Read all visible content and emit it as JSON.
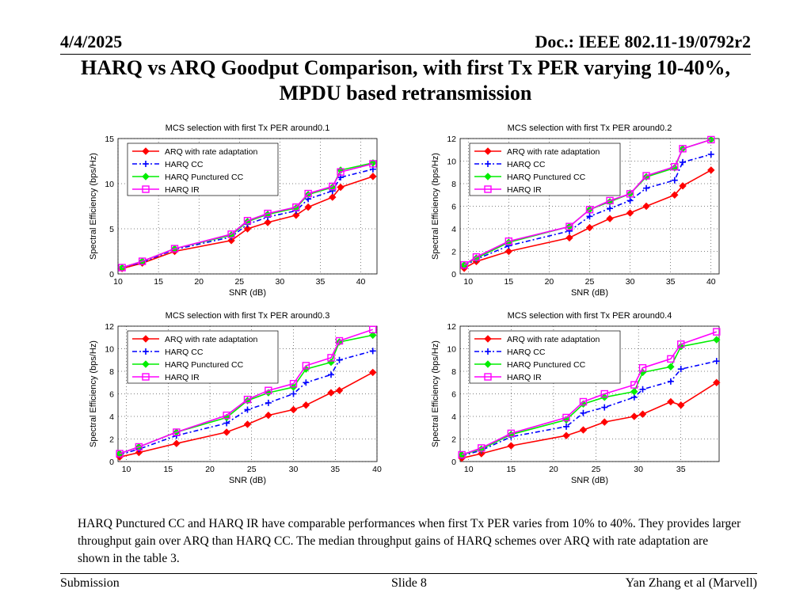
{
  "header": {
    "date": "4/4/2025",
    "doc": "Doc.: IEEE 802.11-19/0792r2"
  },
  "title": {
    "line1": "HARQ vs ARQ Goodput Comparison, with first Tx PER varying 10-40%,",
    "line2": "MPDU based retransmission"
  },
  "caption": "HARQ Punctured CC and HARQ IR have comparable performances when first Tx PER varies from 10% to 40%. They provides larger throughput gain over ARQ than HARQ CC.  The median throughput gains of HARQ schemes over ARQ with rate adaptation are shown in the table 3.",
  "footer": {
    "left": "Submission",
    "center": "Slide 8",
    "right": "Yan Zhang et al (Marvell)"
  },
  "chart_data": [
    {
      "type": "line",
      "title": "MCS selection with first Tx PER around0.1",
      "xlabel": "SNR (dB)",
      "ylabel": "Spectral Efficiency (bps/Hz)",
      "xlim": [
        10,
        42
      ],
      "ylim": [
        0,
        15
      ],
      "xticks": [
        10,
        15,
        20,
        25,
        30,
        35,
        40
      ],
      "yticks": [
        0,
        5,
        10,
        15
      ],
      "grid": true,
      "legend": "top-left",
      "series": [
        {
          "name": "ARQ with rate adaptation",
          "color": "#ff0000",
          "marker": "diamond",
          "x": [
            10.5,
            13,
            17,
            24,
            26,
            28.5,
            32,
            33.5,
            36.5,
            37.5,
            41.5
          ],
          "y": [
            0.6,
            1.2,
            2.5,
            3.7,
            5.0,
            5.7,
            6.5,
            7.4,
            8.5,
            9.6,
            10.8
          ]
        },
        {
          "name": "HARQ CC",
          "color": "#0000ff",
          "marker": "plus",
          "x": [
            10.5,
            13,
            17,
            24,
            26,
            28.5,
            32,
            33.5,
            36.5,
            37.5,
            41.5
          ],
          "y": [
            0.7,
            1.3,
            2.7,
            4.1,
            5.5,
            6.3,
            7.0,
            8.3,
            9.2,
            10.7,
            11.6
          ]
        },
        {
          "name": "HARQ Punctured CC",
          "color": "#00ee00",
          "marker": "diamond",
          "x": [
            10.5,
            13,
            17,
            24,
            26,
            28.5,
            32,
            33.5,
            36.5,
            37.5,
            41.5
          ],
          "y": [
            0.7,
            1.4,
            2.8,
            4.3,
            5.8,
            6.6,
            7.3,
            8.8,
            9.6,
            11.5,
            12.3
          ]
        },
        {
          "name": "HARQ IR",
          "color": "#ff00ff",
          "marker": "square",
          "x": [
            10.5,
            13,
            17,
            24,
            26,
            28.5,
            32,
            33.5,
            36.5,
            37.5,
            41.5
          ],
          "y": [
            0.7,
            1.4,
            2.8,
            4.4,
            5.9,
            6.7,
            7.4,
            8.9,
            9.7,
            11.3,
            12.2
          ]
        }
      ]
    },
    {
      "type": "line",
      "title": "MCS selection with first Tx PER around0.2",
      "xlabel": "SNR (dB)",
      "ylabel": "Spectral Efficiency (bps/Hz)",
      "xlim": [
        9,
        41
      ],
      "ylim": [
        0,
        12
      ],
      "xticks": [
        10,
        15,
        20,
        25,
        30,
        35,
        40
      ],
      "yticks": [
        0,
        2,
        4,
        6,
        8,
        10,
        12
      ],
      "grid": true,
      "legend": "top-left",
      "series": [
        {
          "name": "ARQ with rate adaptation",
          "color": "#ff0000",
          "marker": "diamond",
          "x": [
            9.5,
            11,
            15,
            22.5,
            25,
            27.5,
            30,
            32,
            35.5,
            36.5,
            40
          ],
          "y": [
            0.5,
            1.1,
            2.0,
            3.2,
            4.1,
            4.9,
            5.4,
            6.0,
            7.0,
            7.8,
            9.2
          ]
        },
        {
          "name": "HARQ CC",
          "color": "#0000ff",
          "marker": "plus",
          "x": [
            9.5,
            11,
            15,
            22.5,
            25,
            27.5,
            30,
            32,
            35.5,
            36.5,
            40
          ],
          "y": [
            0.7,
            1.3,
            2.5,
            3.8,
            5.1,
            5.8,
            6.5,
            7.6,
            8.3,
            9.9,
            10.6
          ]
        },
        {
          "name": "HARQ Punctured CC",
          "color": "#00ee00",
          "marker": "diamond",
          "x": [
            9.5,
            11,
            15,
            22.5,
            25,
            27.5,
            30,
            32,
            35.5,
            36.5,
            40
          ],
          "y": [
            0.8,
            1.4,
            2.8,
            4.2,
            5.7,
            6.4,
            7.1,
            8.6,
            9.4,
            11.1,
            11.9
          ]
        },
        {
          "name": "HARQ IR",
          "color": "#ff00ff",
          "marker": "square",
          "x": [
            9.5,
            11,
            15,
            22.5,
            25,
            27.5,
            30,
            32,
            35.5,
            36.5,
            40
          ],
          "y": [
            0.8,
            1.5,
            2.9,
            4.2,
            5.7,
            6.5,
            7.1,
            8.7,
            9.5,
            11.1,
            11.9
          ]
        }
      ]
    },
    {
      "type": "line",
      "title": "MCS selection with first Tx PER around0.3",
      "xlabel": "SNR (dB)",
      "ylabel": "Spectral Efficiency (bps/Hz)",
      "xlim": [
        9,
        40
      ],
      "ylim": [
        0,
        12
      ],
      "xticks": [
        10,
        15,
        20,
        25,
        30,
        35,
        40
      ],
      "yticks": [
        0,
        2,
        4,
        6,
        8,
        10,
        12
      ],
      "grid": true,
      "legend": "top-left",
      "series": [
        {
          "name": "ARQ with rate adaptation",
          "color": "#ff0000",
          "marker": "diamond",
          "x": [
            9.2,
            11.5,
            16,
            22,
            24.5,
            27,
            30,
            31.5,
            34.5,
            35.5,
            39.5
          ],
          "y": [
            0.4,
            0.8,
            1.6,
            2.6,
            3.3,
            4.1,
            4.6,
            5.0,
            6.1,
            6.3,
            7.9
          ]
        },
        {
          "name": "HARQ CC",
          "color": "#0000ff",
          "marker": "plus",
          "x": [
            9.2,
            11.5,
            16,
            22,
            24.5,
            27,
            30,
            31.5,
            34.5,
            35.5,
            39.5
          ],
          "y": [
            0.6,
            1.1,
            2.3,
            3.4,
            4.6,
            5.2,
            6.0,
            7.0,
            7.7,
            9.0,
            9.8
          ]
        },
        {
          "name": "HARQ Punctured CC",
          "color": "#00ee00",
          "marker": "diamond",
          "x": [
            9.2,
            11.5,
            16,
            22,
            24.5,
            27,
            30,
            31.5,
            34.5,
            35.5,
            39.5
          ],
          "y": [
            0.7,
            1.3,
            2.6,
            3.9,
            5.4,
            6.1,
            6.6,
            8.2,
            8.8,
            10.6,
            11.2
          ]
        },
        {
          "name": "HARQ IR",
          "color": "#ff00ff",
          "marker": "square",
          "x": [
            9.2,
            11.5,
            16,
            22,
            24.5,
            27,
            30,
            31.5,
            34.5,
            35.5,
            39.5
          ],
          "y": [
            0.7,
            1.3,
            2.6,
            4.1,
            5.5,
            6.3,
            6.9,
            8.5,
            9.2,
            10.7,
            11.7
          ]
        }
      ]
    },
    {
      "type": "line",
      "title": "MCS selection with first Tx PER around0.4",
      "xlabel": "SNR (dB)",
      "ylabel": "Spectral Efficiency (bps/Hz)",
      "xlim": [
        9,
        39.5
      ],
      "ylim": [
        0,
        12
      ],
      "xticks": [
        10,
        15,
        20,
        25,
        30,
        35
      ],
      "yticks": [
        0,
        2,
        4,
        6,
        8,
        10,
        12
      ],
      "grid": true,
      "legend": "top-left",
      "series": [
        {
          "name": "ARQ with rate adaptation",
          "color": "#ff0000",
          "marker": "diamond",
          "x": [
            9.2,
            11.5,
            15,
            21.5,
            23.5,
            26,
            29.5,
            30.5,
            33.8,
            35,
            39.2
          ],
          "y": [
            0.3,
            0.7,
            1.4,
            2.3,
            2.8,
            3.5,
            4.0,
            4.2,
            5.3,
            5.0,
            7.0
          ]
        },
        {
          "name": "HARQ CC",
          "color": "#0000ff",
          "marker": "plus",
          "x": [
            9.2,
            11.5,
            15,
            21.5,
            23.5,
            26,
            29.5,
            30.5,
            33.8,
            35,
            39.2
          ],
          "y": [
            0.5,
            1.0,
            2.2,
            3.1,
            4.3,
            4.8,
            5.7,
            6.4,
            7.1,
            8.2,
            8.9
          ]
        },
        {
          "name": "HARQ Punctured CC",
          "color": "#00ee00",
          "marker": "diamond",
          "x": [
            9.2,
            11.5,
            15,
            21.5,
            23.5,
            26,
            29.5,
            30.5,
            33.8,
            35,
            39.2
          ],
          "y": [
            0.6,
            1.1,
            2.4,
            3.7,
            5.1,
            5.7,
            6.2,
            7.9,
            8.4,
            10.2,
            10.8
          ]
        },
        {
          "name": "HARQ IR",
          "color": "#ff00ff",
          "marker": "square",
          "x": [
            9.2,
            11.5,
            15,
            21.5,
            23.5,
            26,
            29.5,
            30.5,
            33.8,
            35,
            39.2
          ],
          "y": [
            0.6,
            1.2,
            2.5,
            3.9,
            5.3,
            6.0,
            6.8,
            8.3,
            9.1,
            10.4,
            11.5
          ]
        }
      ]
    }
  ]
}
